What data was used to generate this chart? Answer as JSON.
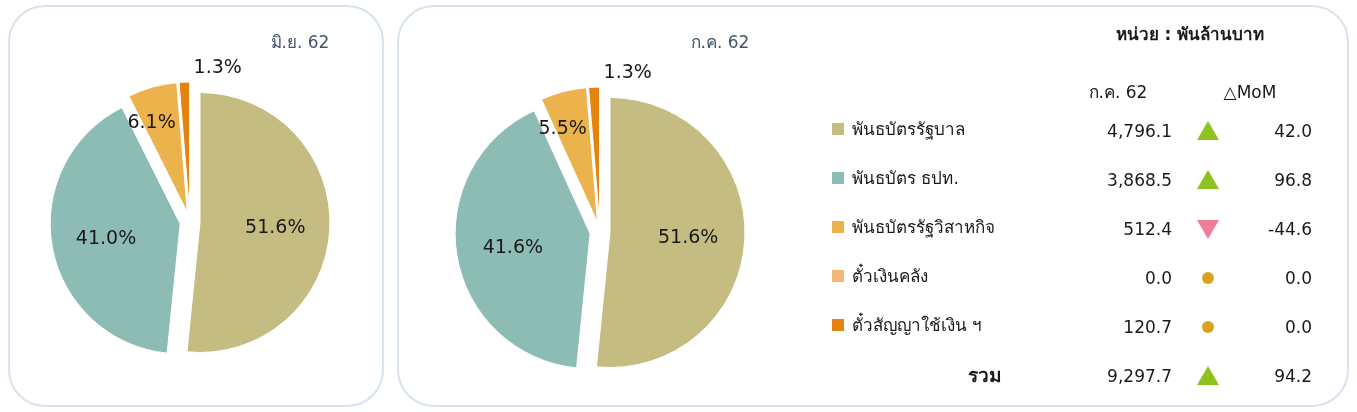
{
  "chart_data": [
    {
      "type": "pie",
      "title": "มิ.ย. 62",
      "categories": [
        null,
        null,
        null,
        null,
        null
      ],
      "values": [
        51.6,
        41.0,
        6.1,
        0,
        1.3
      ],
      "value_labels": [
        "51.6%",
        "41.0%",
        "6.1%",
        null,
        "1.3%"
      ],
      "colors": [
        "#c4bc80",
        "#8dbcb5",
        "#ecb24c",
        "#f3b679",
        "#e5830f"
      ]
    },
    {
      "type": "pie",
      "title": "ก.ค. 62",
      "categories": [
        null,
        null,
        null,
        null,
        null
      ],
      "values": [
        51.6,
        41.6,
        5.5,
        0,
        1.3
      ],
      "value_labels": [
        "51.6%",
        "41.6%",
        "5.5%",
        null,
        "1.3%"
      ],
      "colors": [
        "#c4bc80",
        "#8dbcb5",
        "#ecb24c",
        "#f3b679",
        "#e5830f"
      ]
    },
    {
      "type": "other",
      "title": "หน่วย : พันล้านบาท",
      "categories": [
        "พันธบัตรรัฐบาล",
        "พันธบัตร ธปท.",
        "พันธบัตรรัฐวิสาหกิจ",
        "ตั๋วเงินคลัง",
        "ตั๋วสัญญาใช้เงิน ฯ",
        "รวม"
      ],
      "colors": [
        "#c4bc80",
        "#8dbcb5",
        "#ecb24c",
        "#f3b679",
        "#e5830f",
        null
      ],
      "series": [
        {
          "name": "ก.ค. 62",
          "values": [
            4796.1,
            3868.5,
            512.4,
            0.0,
            120.7,
            9297.7
          ],
          "value_labels": [
            "4,796.1",
            "3,868.5",
            "512.4",
            "0.0",
            "120.7",
            "9,297.7"
          ]
        },
        {
          "name": "△MoM",
          "values": [
            42.0,
            96.8,
            -44.6,
            0.0,
            0.0,
            94.2
          ],
          "value_labels": [
            "42.0",
            "96.8",
            "-44.6",
            "0.0",
            "0.0",
            "94.2"
          ],
          "colors": [
            "#8dc21f",
            "#8dc21f",
            "#f07c9c",
            "#d9a21c",
            "#d9a21c",
            "#8dc21f"
          ]
        }
      ]
    }
  ]
}
